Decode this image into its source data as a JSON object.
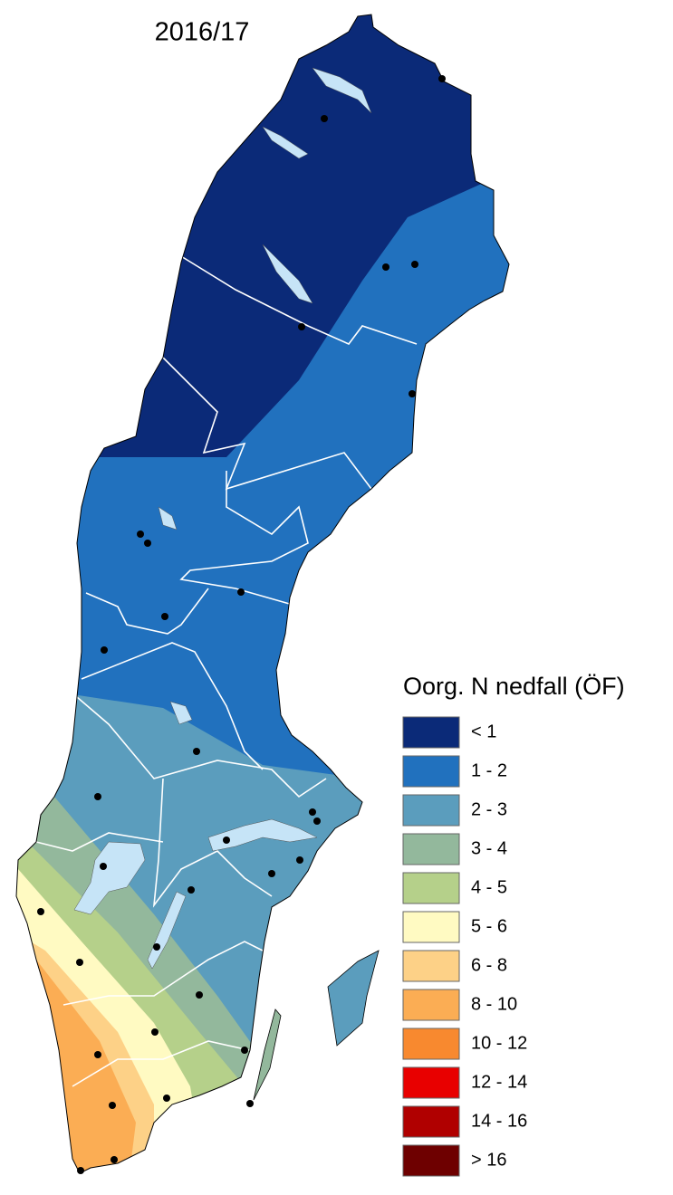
{
  "title": "2016/17",
  "legend": {
    "title": "Oorg. N nedfall (ÖF)",
    "items": [
      {
        "label": "< 1",
        "color": "#0b2a78"
      },
      {
        "label": "1 - 2",
        "color": "#2171be"
      },
      {
        "label": "2 - 3",
        "color": "#5b9dbd"
      },
      {
        "label": "3 - 4",
        "color": "#93b89c"
      },
      {
        "label": "4 - 5",
        "color": "#b5d08a"
      },
      {
        "label": "5 - 6",
        "color": "#fffac2"
      },
      {
        "label": "6 - 8",
        "color": "#fdd187"
      },
      {
        "label": "8 - 10",
        "color": "#fbad54"
      },
      {
        "label": "10 - 12",
        "color": "#f8892f"
      },
      {
        "label": "12 - 14",
        "color": "#e80000"
      },
      {
        "label": "14 - 16",
        "color": "#b00000"
      },
      {
        "label": "> 16",
        "color": "#6e0000"
      }
    ]
  }
}
